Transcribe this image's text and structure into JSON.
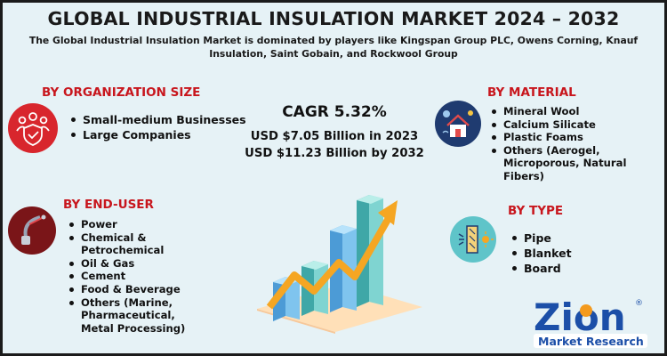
{
  "header": {
    "title": "GLOBAL INDUSTRIAL INSULATION MARKET 2024 – 2032",
    "subtitle": "The Global Industrial Insulation Market is dominated by players like Kingspan Group PLC, Owens Corning, Knauf Insulation, Saint Gobain, and Rockwool Group"
  },
  "stats": {
    "cagr": "CAGR 5.32%",
    "value_2023": "USD $7.05 Billion in 2023",
    "value_2032": "USD $11.23 Billion  by 2032"
  },
  "organization_size": {
    "heading": "BY ORGANIZATION SIZE",
    "icon": "team-shield-icon",
    "items": [
      "Small-medium Businesses",
      "Large Companies"
    ]
  },
  "end_user": {
    "heading": "BY END-USER",
    "icon": "pipe-nozzle-icon",
    "items": [
      "Power",
      "Chemical & Petrochemical",
      "Oil & Gas",
      "Cement",
      "Food & Beverage",
      "Others (Marine, Pharmaceutical, Metal Processing)"
    ]
  },
  "material": {
    "heading": "BY MATERIAL",
    "icon": "insulated-house-icon",
    "items": [
      "Mineral Wool",
      "Calcium Silicate",
      "Plastic Foams",
      "Others (Aerogel, Microporous, Natural Fibers)"
    ]
  },
  "type": {
    "heading": "BY TYPE",
    "icon": "insulation-layer-icon",
    "items": [
      "Pipe",
      "Blanket",
      "Board"
    ]
  },
  "logo": {
    "brand": "Zion",
    "tagline": "Market Research",
    "registered": "®"
  },
  "colors": {
    "background": "#e6f2f6",
    "heading_red": "#c8161d",
    "icon_red": "#d8262d",
    "icon_navy": "#1f3b70",
    "icon_teal": "#5fc4c9",
    "logo_blue": "#1c4fa8",
    "logo_orange": "#f39a1e"
  }
}
